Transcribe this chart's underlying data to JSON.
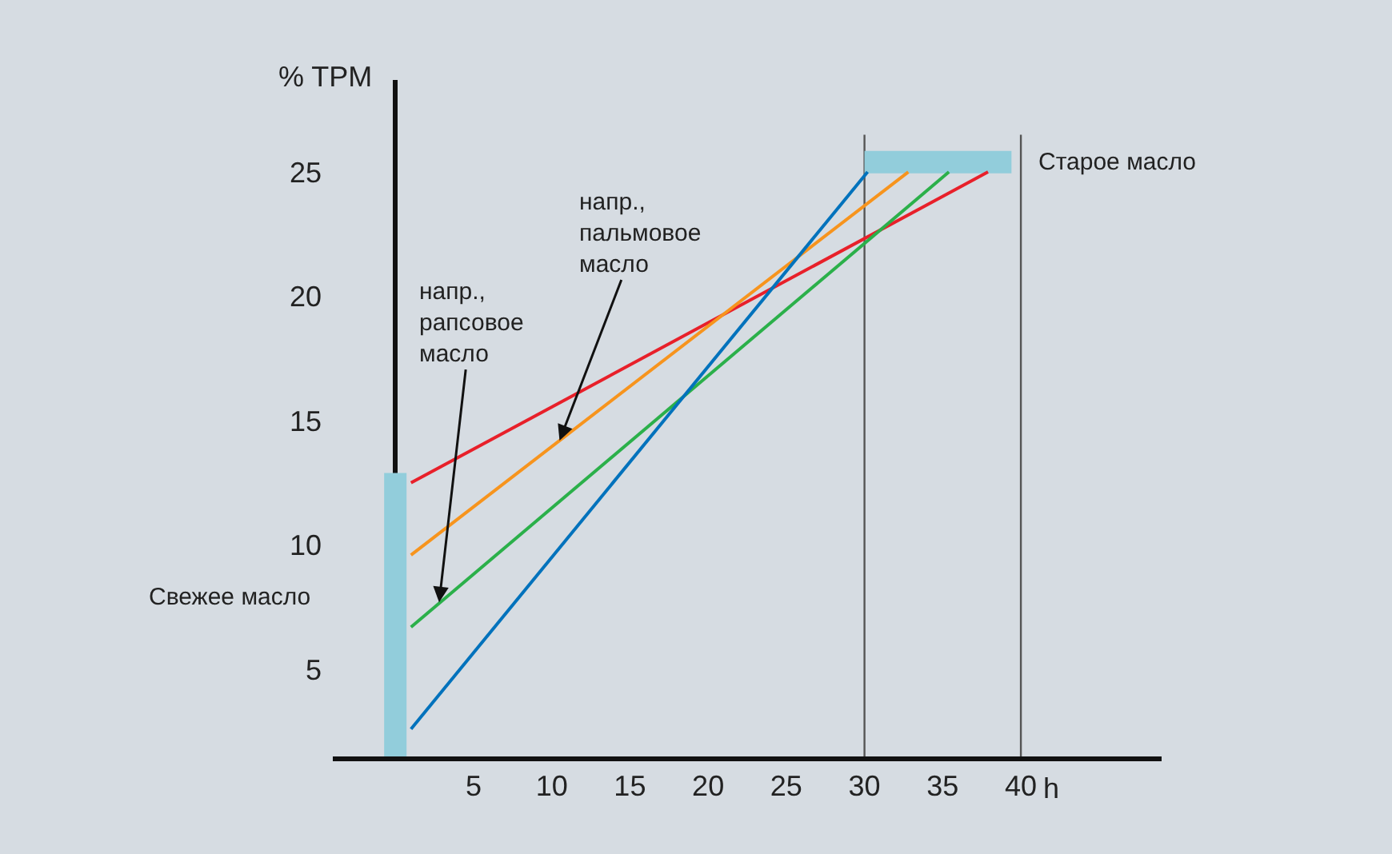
{
  "chart_data": {
    "type": "line",
    "ylabel": "% TPM",
    "xlabel": "h",
    "xlim": [
      -4,
      49
    ],
    "ylim": [
      1.5,
      28.7
    ],
    "xticks": [
      5,
      10,
      15,
      20,
      25,
      30,
      35,
      40
    ],
    "yticks": [
      5,
      10,
      15,
      20,
      25
    ],
    "grid": false,
    "line_style": "solid",
    "series": [
      {
        "color": "#92cddb",
        "x": [
          0,
          0
        ],
        "values": [
          1.5,
          12.9
        ]
      },
      {
        "color": "#92cddb",
        "x": [
          30,
          39.4
        ],
        "values": [
          25.4,
          25.4
        ]
      },
      {
        "color": "#e8202a",
        "x": [
          1,
          37.9
        ],
        "values": [
          12.5,
          25
        ]
      },
      {
        "color": "#f7941d",
        "x": [
          1,
          32.8
        ],
        "values": [
          9.6,
          25
        ]
      },
      {
        "color": "#2bb04a",
        "x": [
          1,
          35.4
        ],
        "values": [
          6.7,
          25
        ]
      },
      {
        "color": "#0072bc",
        "x": [
          1,
          30.2
        ],
        "values": [
          2.6,
          25
        ]
      }
    ],
    "ref_lines": [
      {
        "axis": "x",
        "value": 30,
        "color": "#555555"
      },
      {
        "axis": "x",
        "value": 40,
        "color": "#555555"
      }
    ],
    "annotations": [
      {
        "text": "напр.,\nрапсовое\nмасло",
        "x": 2.8,
        "y": 7.7
      },
      {
        "text": "напр.,\nпальмовое\nмасло",
        "x": 10.5,
        "y": 14.2
      },
      "Свежее масло",
      {
        "text": "Старое масло",
        "x": 39.4,
        "y": 25.4
      }
    ]
  }
}
